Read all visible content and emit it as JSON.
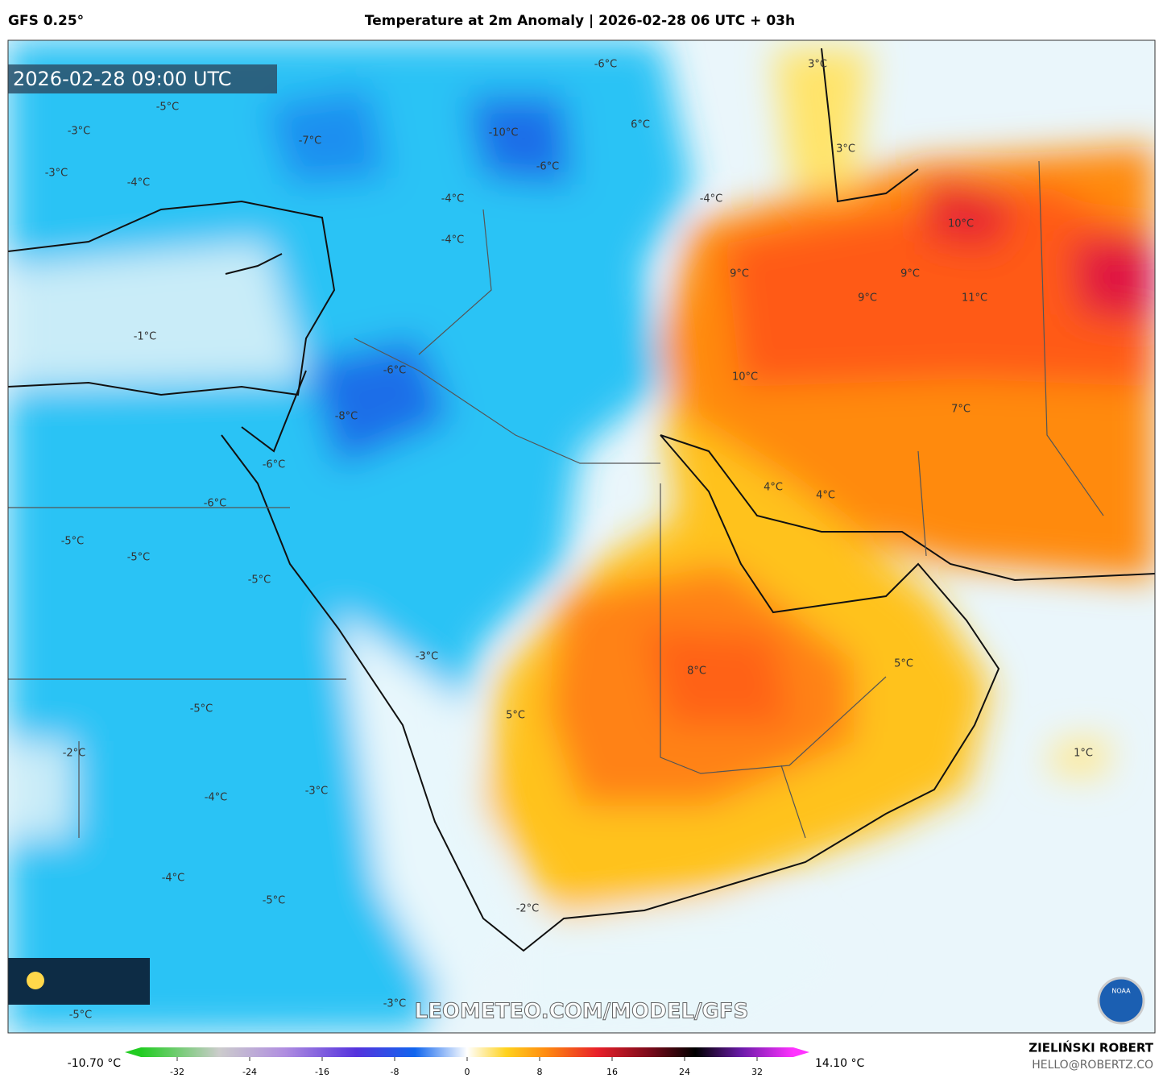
{
  "header": {
    "model": "GFS 0.25°",
    "title": "Temperature at 2m Anomaly | 2026-02-28 06 UTC + 03h"
  },
  "timestamp": "2026-02-28 09:00 UTC",
  "map_labels": [
    "-6°C",
    "3°C",
    "-5°C",
    "-3°C",
    "-7°C",
    "-10°C",
    "6°C",
    "3°C",
    "-3°C",
    "-6°C",
    "-4°C",
    "-4°C",
    "-4°C",
    "-4°C",
    "10°C",
    "9°C",
    "9°C",
    "9°C",
    "11°C",
    "-1°C",
    "-6°C",
    "10°C",
    "-8°C",
    "7°C",
    "-6°C",
    "4°C",
    "4°C",
    "-6°C",
    "-5°C",
    "-5°C",
    "-5°C",
    "-3°C",
    "5°C",
    "8°C",
    "-5°C",
    "5°C",
    "-2°C",
    "1°C",
    "-4°C",
    "-3°C",
    "-4°C",
    "-5°C",
    "-2°C",
    "-3°C",
    "-5°C"
  ],
  "watermark": "LEOMETEO.COM/MODEL/GFS",
  "logo_text": "NOAA",
  "colorbar": {
    "min_label": "-10.70 °C",
    "max_label": "14.10 °C",
    "ticks": [
      -32,
      -24,
      -16,
      -8,
      0,
      8,
      16,
      24,
      32
    ],
    "range": [
      -36,
      36
    ]
  },
  "footer": {
    "author": "ZIELIŃSKI ROBERT",
    "contact": "HELLO@ROBERTZ.CO"
  }
}
